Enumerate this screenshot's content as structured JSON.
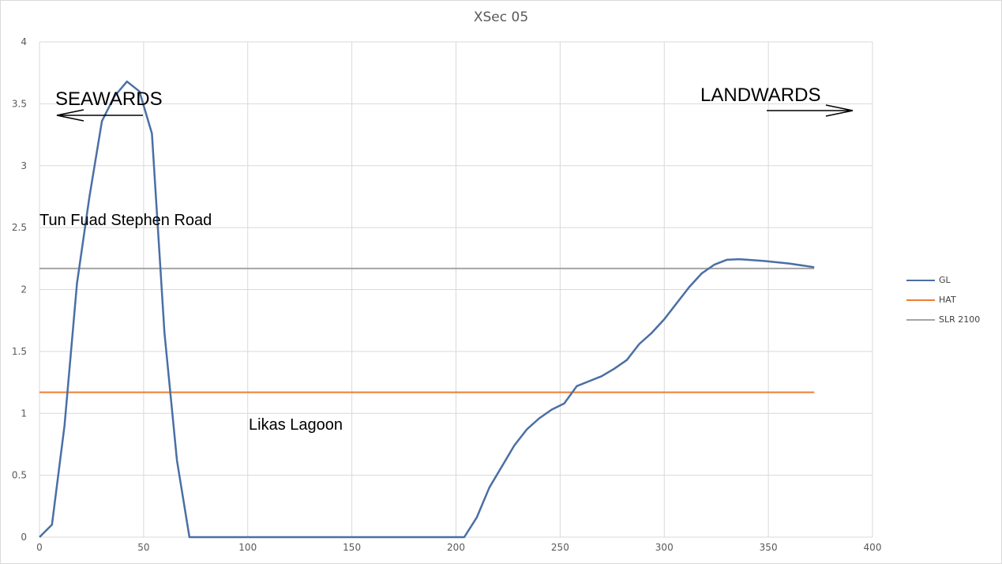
{
  "chart_data": {
    "type": "line",
    "title": "XSec 05",
    "xlabel": "",
    "ylabel": "",
    "xlim": [
      0,
      400
    ],
    "ylim": [
      0,
      4
    ],
    "x_ticks": [
      "0",
      "50",
      "100",
      "150",
      "200",
      "250",
      "300",
      "350",
      "400"
    ],
    "y_ticks": [
      "0",
      "0.5",
      "1",
      "1.5",
      "2",
      "2.5",
      "3",
      "3.5",
      "4"
    ],
    "grid": true,
    "legend_position": "right",
    "series": [
      {
        "name": "GL",
        "color": "#4a6fa5",
        "points": [
          [
            0,
            0
          ],
          [
            6,
            0.1
          ],
          [
            12,
            0.9
          ],
          [
            18,
            2.05
          ],
          [
            24,
            2.75
          ],
          [
            30,
            3.36
          ],
          [
            36,
            3.56
          ],
          [
            42,
            3.68
          ],
          [
            48,
            3.6
          ],
          [
            54,
            3.26
          ],
          [
            60,
            1.65
          ],
          [
            66,
            0.62
          ],
          [
            72,
            0
          ],
          [
            78,
            0
          ],
          [
            90,
            0
          ],
          [
            120,
            0
          ],
          [
            150,
            0
          ],
          [
            180,
            0
          ],
          [
            204,
            0
          ],
          [
            210,
            0.16
          ],
          [
            216,
            0.4
          ],
          [
            222,
            0.57
          ],
          [
            228,
            0.74
          ],
          [
            234,
            0.87
          ],
          [
            240,
            0.96
          ],
          [
            246,
            1.03
          ],
          [
            252,
            1.08
          ],
          [
            258,
            1.22
          ],
          [
            264,
            1.26
          ],
          [
            270,
            1.3
          ],
          [
            276,
            1.36
          ],
          [
            282,
            1.43
          ],
          [
            288,
            1.56
          ],
          [
            294,
            1.65
          ],
          [
            300,
            1.76
          ],
          [
            306,
            1.89
          ],
          [
            312,
            2.02
          ],
          [
            318,
            2.13
          ],
          [
            324,
            2.2
          ],
          [
            330,
            2.24
          ],
          [
            336,
            2.245
          ],
          [
            348,
            2.23
          ],
          [
            360,
            2.21
          ],
          [
            372,
            2.18
          ]
        ]
      },
      {
        "name": "HAT",
        "color": "#ed7d31",
        "points": [
          [
            0,
            1.17
          ],
          [
            372,
            1.17
          ]
        ]
      },
      {
        "name": "SLR 2100",
        "color": "#a5a5a5",
        "points": [
          [
            0,
            2.17
          ],
          [
            372,
            2.17
          ]
        ]
      }
    ],
    "annotations": [
      {
        "text": "SEAWARDS",
        "x": 8,
        "y": 3.55,
        "arrow": "left"
      },
      {
        "text": "LANDWARDS",
        "x": 318,
        "y": 3.58,
        "arrow": "right"
      },
      {
        "text": "Tun Fuad Stephen Road",
        "x": 0,
        "y": 2.55
      },
      {
        "text": "Likas Lagoon",
        "x": 100,
        "y": 0.9
      }
    ]
  },
  "legend": [
    {
      "label": "GL",
      "color": "#4a6fa5"
    },
    {
      "label": "HAT",
      "color": "#ed7d31"
    },
    {
      "label": "SLR 2100",
      "color": "#a5a5a5"
    }
  ]
}
